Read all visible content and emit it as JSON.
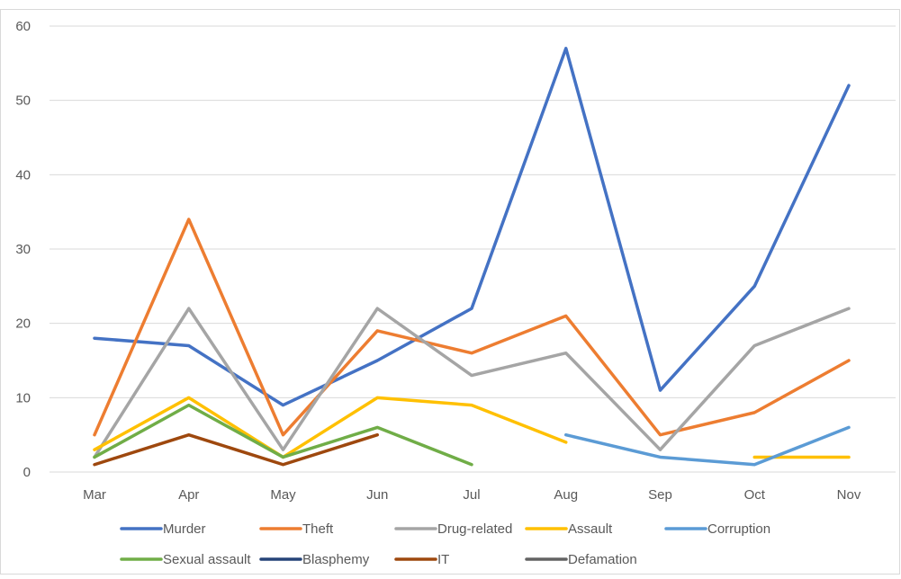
{
  "chart_data": {
    "type": "line",
    "title": "",
    "xlabel": "",
    "ylabel": "",
    "categories": [
      "Mar",
      "Apr",
      "May",
      "Jun",
      "Jul",
      "Aug",
      "Sep",
      "Oct",
      "Nov"
    ],
    "ylim": [
      0,
      60
    ],
    "yticks": [
      "0",
      "10",
      "20",
      "30",
      "40",
      "50",
      "60"
    ],
    "grid": true,
    "legend_position": "bottom",
    "series": [
      {
        "name": "Murder",
        "color": "#4472C4",
        "values": [
          18,
          17,
          9,
          15,
          22,
          57,
          11,
          25,
          52
        ]
      },
      {
        "name": "Theft",
        "color": "#ED7D31",
        "values": [
          5,
          34,
          5,
          19,
          16,
          21,
          5,
          8,
          15
        ]
      },
      {
        "name": "Drug-related",
        "color": "#A5A5A5",
        "values": [
          2,
          22,
          3,
          22,
          13,
          16,
          3,
          17,
          22
        ]
      },
      {
        "name": "Assault",
        "color": "#FFC000",
        "values": [
          3,
          10,
          2,
          10,
          9,
          4,
          null,
          2,
          2
        ]
      },
      {
        "name": "Corruption",
        "color": "#5B9BD5",
        "values": [
          null,
          null,
          null,
          null,
          null,
          5,
          2,
          1,
          6
        ]
      },
      {
        "name": "Sexual assault",
        "color": "#70AD47",
        "values": [
          2,
          9,
          2,
          6,
          1,
          null,
          null,
          null,
          null
        ]
      },
      {
        "name": "Blasphemy",
        "color": "#264478",
        "values": [
          null,
          null,
          null,
          null,
          null,
          null,
          null,
          null,
          null
        ]
      },
      {
        "name": "IT",
        "color": "#9E480E",
        "values": [
          1,
          5,
          1,
          5,
          null,
          null,
          null,
          null,
          null
        ]
      },
      {
        "name": "Defamation",
        "color": "#636363",
        "values": [
          null,
          null,
          null,
          null,
          null,
          null,
          null,
          null,
          null
        ]
      }
    ]
  }
}
